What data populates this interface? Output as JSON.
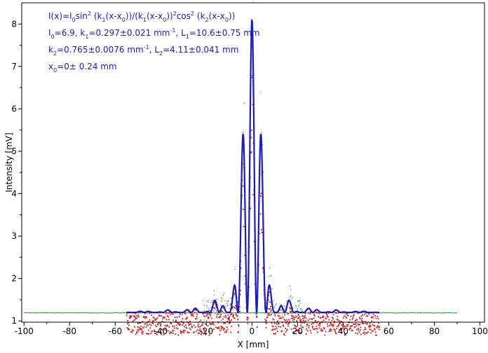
{
  "chart_data": {
    "type": "scatter",
    "xlabel": "X [mm]",
    "ylabel": "Intensity [mV]",
    "xlim": [
      -101,
      102
    ],
    "ylim": [
      0.97,
      8.5
    ],
    "x_ticks": [
      -100,
      -80,
      -60,
      -40,
      -20,
      0,
      20,
      40,
      60,
      80,
      100
    ],
    "y_ticks": [
      1,
      2,
      3,
      4,
      5,
      6,
      7,
      8
    ],
    "grid": false,
    "annotations": [
      {
        "id": "formula",
        "parts": [
          "I(x)=I",
          "0",
          "sin",
          "2",
          " (k",
          "1",
          "(x-x",
          "0",
          "))/(k",
          "1",
          "(x-x",
          "0",
          "))",
          "2",
          "cos",
          "2",
          " (k",
          "2",
          "(x-x",
          "0",
          "))"
        ]
      },
      {
        "id": "params1",
        "parts": [
          "I",
          "0",
          "=6.9,  k",
          "1",
          "=0.297±0.021 mm",
          "-1",
          ",   L",
          "1",
          "=10.6±0.75 mm"
        ]
      },
      {
        "id": "params2",
        "parts": [
          "k",
          "2",
          "=0.765±0.0076 mm",
          "-1",
          ",   L",
          "2",
          "=4.11±0.041 mm"
        ]
      },
      {
        "id": "params3",
        "parts": [
          "x",
          "0",
          "=0±  0.24 mm"
        ]
      }
    ],
    "fit": {
      "model": "I(x)=I0 sin^2(k1(x-x0))/(k1(x-x0))^2 cos^2(k2(x-x0))",
      "I0": 6.9,
      "k1": 0.297,
      "k2": 0.765,
      "x0": 0,
      "offset": 1.2,
      "x_range": [
        -55,
        56
      ],
      "color": "#1a1acc"
    },
    "series": [
      {
        "values_desc": "measured intensity",
        "color": "#e01010",
        "x_range": [
          -55,
          56
        ]
      },
      {
        "values_desc": "background",
        "color": "#2e8b2e",
        "x_range": [
          -100,
          90
        ],
        "level": 1.2
      }
    ]
  }
}
